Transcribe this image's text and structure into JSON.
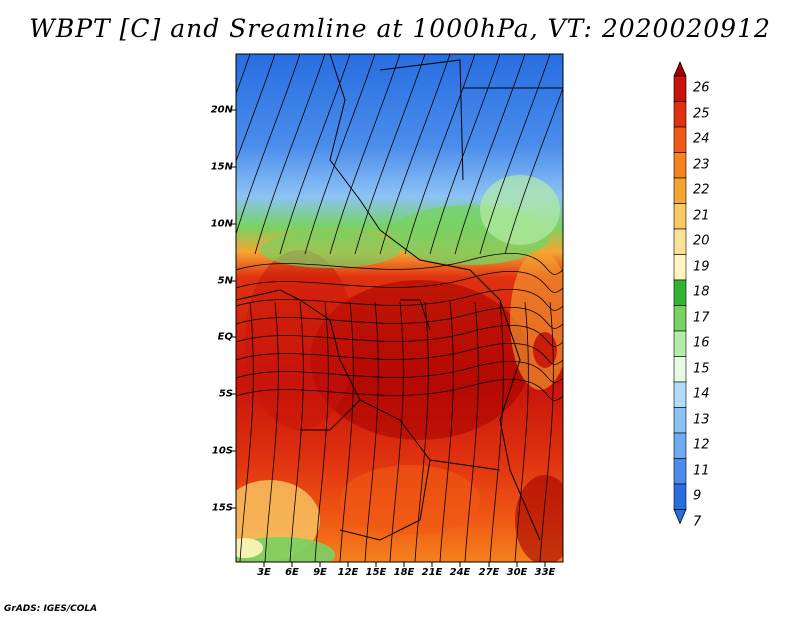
{
  "title": "WBPT [C] and Sreamline at 1000hPa, VT: 2020020912",
  "footer": "GrADS: IGES/COLA",
  "lat_labels": [
    "20N",
    "15N",
    "10N",
    "5N",
    "EQ",
    "5S",
    "10S",
    "15S"
  ],
  "lon_labels": [
    "3E",
    "6E",
    "9E",
    "12E",
    "15E",
    "18E",
    "21E",
    "24E",
    "27E",
    "30E",
    "33E"
  ],
  "colorbar": {
    "labels": [
      "26",
      "25",
      "24",
      "23",
      "22",
      "21",
      "20",
      "19",
      "18",
      "17",
      "16",
      "15",
      "14",
      "13",
      "12",
      "11",
      "9",
      "7"
    ],
    "colors": [
      "#a50000",
      "#c8140a",
      "#e03210",
      "#f05a14",
      "#f5821e",
      "#f5a532",
      "#f8c864",
      "#fae196",
      "#fff5be",
      "#32b432",
      "#78d264",
      "#b4eba5",
      "#e6fae6",
      "#b4dcfa",
      "#8cc3f5",
      "#6eaaf0",
      "#4b8ceb",
      "#286ee1"
    ]
  },
  "map_data": {
    "variable": "WBPT [C]",
    "level": "1000hPa",
    "valid_time": "2020020912",
    "lon_range": [
      0,
      35
    ],
    "lat_range": [
      -20,
      24
    ]
  }
}
